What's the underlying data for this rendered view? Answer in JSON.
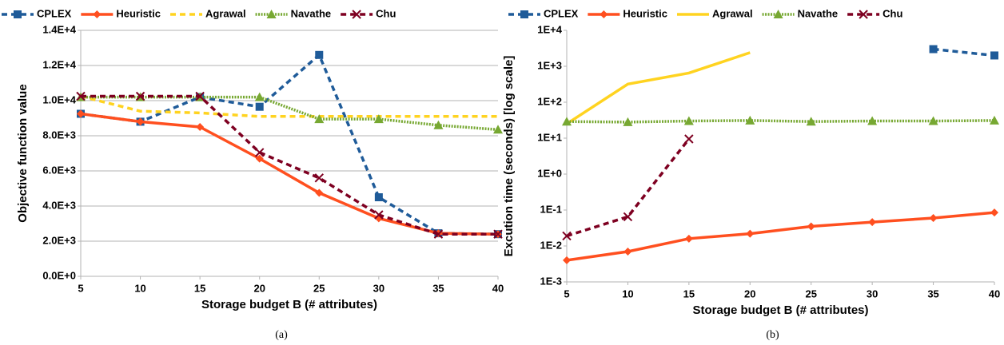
{
  "chart_data": [
    {
      "type": "line",
      "caption": "(a)",
      "x_label": "Storage budget B (# attributes)",
      "y_label": "Objective function value",
      "x": [
        5,
        10,
        15,
        20,
        25,
        30,
        35,
        40
      ],
      "xlim": [
        5,
        40
      ],
      "xticks": [
        5,
        10,
        15,
        20,
        25,
        30,
        35,
        40
      ],
      "ylim": [
        0,
        14000
      ],
      "yticks": [
        {
          "value": 0,
          "label": "0.0E+0"
        },
        {
          "value": 2000,
          "label": "2.0E+3"
        },
        {
          "value": 4000,
          "label": "4.0E+3"
        },
        {
          "value": 6000,
          "label": "6.0E+3"
        },
        {
          "value": 8000,
          "label": "8.0E+3"
        },
        {
          "value": 10000,
          "label": "1.0E+4"
        },
        {
          "value": 12000,
          "label": "1.2E+4"
        },
        {
          "value": 14000,
          "label": "1.4E+4"
        }
      ],
      "log_scale": false,
      "grid": true,
      "legend": "top",
      "series": [
        {
          "name": "CPLEX",
          "color": "#1f5b99",
          "dash": "dashed",
          "marker": "square",
          "values": [
            9250,
            8800,
            10200,
            9650,
            12600,
            4500,
            2450,
            2400
          ]
        },
        {
          "name": "Heuristic",
          "color": "#ff4f1f",
          "dash": "solid",
          "marker": "diamond",
          "values": [
            9250,
            8800,
            8500,
            6700,
            4750,
            3300,
            2450,
            2400
          ]
        },
        {
          "name": "Agrawal",
          "color": "#ffd320",
          "dash": "dashed",
          "marker": "none",
          "values": [
            10250,
            9400,
            9300,
            9100,
            9100,
            9100,
            9100,
            9100
          ]
        },
        {
          "name": "Navathe",
          "color": "#77a832",
          "dash": "dotted",
          "marker": "triangle",
          "values": [
            10200,
            10200,
            10200,
            10200,
            8950,
            8950,
            8600,
            8350
          ]
        },
        {
          "name": "Chu",
          "color": "#7e0021",
          "dash": "dashed",
          "marker": "x",
          "values": [
            10250,
            10250,
            10250,
            7050,
            5600,
            3500,
            2400,
            2400
          ]
        }
      ]
    },
    {
      "type": "line",
      "caption": "(b)",
      "x_label": "Storage budget B (# attributes)",
      "y_label": "Excution time (seconds) [log scale]",
      "x": [
        5,
        10,
        15,
        20,
        25,
        30,
        35,
        40
      ],
      "xlim": [
        5,
        40
      ],
      "xticks": [
        5,
        10,
        15,
        20,
        25,
        30,
        35,
        40
      ],
      "ylim": [
        0.001,
        10000
      ],
      "yticks": [
        {
          "value": 0.001,
          "label": "1E-3"
        },
        {
          "value": 0.01,
          "label": "1E-2"
        },
        {
          "value": 0.1,
          "label": "1E-1"
        },
        {
          "value": 1,
          "label": "1E+0"
        },
        {
          "value": 10,
          "label": "1E+1"
        },
        {
          "value": 100,
          "label": "1E+2"
        },
        {
          "value": 1000,
          "label": "1E+3"
        },
        {
          "value": 10000,
          "label": "1E+4"
        }
      ],
      "log_scale": true,
      "grid": false,
      "legend": "top",
      "series": [
        {
          "name": "CPLEX",
          "color": "#1f5b99",
          "dash": "dashed",
          "marker": "square",
          "values": [
            null,
            null,
            null,
            null,
            null,
            null,
            3000,
            2000
          ]
        },
        {
          "name": "Heuristic",
          "color": "#ff4f1f",
          "dash": "solid",
          "marker": "diamond",
          "values": [
            0.004,
            0.007,
            0.016,
            0.022,
            0.035,
            0.046,
            0.06,
            0.085
          ]
        },
        {
          "name": "Agrawal",
          "color": "#ffd320",
          "dash": "solid",
          "marker": "none",
          "values": [
            25,
            320,
            650,
            2400,
            null,
            null,
            null,
            null
          ]
        },
        {
          "name": "Navathe",
          "color": "#77a832",
          "dash": "dotted",
          "marker": "triangle",
          "values": [
            29,
            28,
            30,
            31,
            29,
            30,
            30,
            31
          ]
        },
        {
          "name": "Chu",
          "color": "#7e0021",
          "dash": "dashed",
          "marker": "x",
          "values": [
            0.019,
            0.065,
            9.5,
            null,
            null,
            null,
            null,
            null
          ]
        }
      ]
    }
  ]
}
